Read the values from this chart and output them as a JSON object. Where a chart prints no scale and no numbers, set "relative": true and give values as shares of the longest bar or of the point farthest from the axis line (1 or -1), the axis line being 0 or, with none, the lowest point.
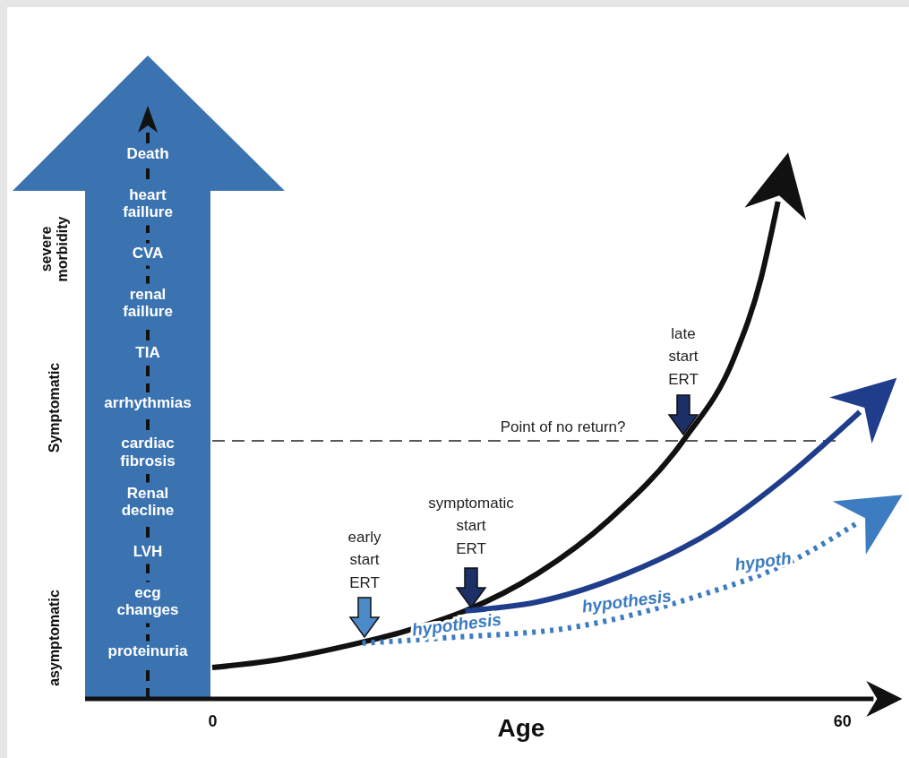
{
  "chart_data": {
    "type": "line",
    "relative": true,
    "xlabel": "Age",
    "xlim": [
      0,
      63
    ],
    "xticks": [
      0,
      60
    ],
    "series": [
      {
        "color": "#111111",
        "x": [
          0,
          5.4,
          13.9,
          18.2,
          24.1,
          31.0,
          37.8,
          45.0,
          49.7,
          52.3,
          53.9
        ],
        "values": [
          0.063,
          0.076,
          0.112,
          0.135,
          0.177,
          0.252,
          0.36,
          0.523,
          0.685,
          0.847,
          1
        ]
      },
      {
        "color": "#1f3d8a",
        "x": [
          24.1,
          31.0,
          39.5,
          48.0,
          54.9,
          61.7
        ],
        "values": [
          0.177,
          0.195,
          0.252,
          0.342,
          0.45,
          0.577
        ]
      },
      {
        "color": "#3d7cc0",
        "line_style": "dotted",
        "x": [
          14.3,
          22.4,
          34.4,
          46.3,
          54.9,
          61.7
        ],
        "values": [
          0.112,
          0.123,
          0.144,
          0.207,
          0.274,
          0.357
        ]
      }
    ],
    "ref_lines": [
      {
        "axis": "y",
        "value": 0.519,
        "label": "Point of no return?",
        "line_style": "dashed",
        "color": "#222222"
      }
    ],
    "annotations": [
      "early start ERT",
      "symptomatic start ERT",
      "late start ERT",
      {
        "text": "hypothesis",
        "x": 23.3,
        "y": 0.118
      },
      {
        "text": "hypothesis",
        "x": 39.5,
        "y": 0.165
      },
      {
        "text": "hypoth",
        "x": 52.5,
        "y": 0.245
      },
      "Death",
      "heart faillure",
      "CVA",
      "renal faillure",
      "TIA",
      "arrhythmias",
      "cardiac fibrosis",
      "Renal decline",
      "LVH",
      "ecg changes",
      "proteinuria",
      "severe morbidity",
      "Symptomatic",
      "asymptomatic"
    ]
  }
}
